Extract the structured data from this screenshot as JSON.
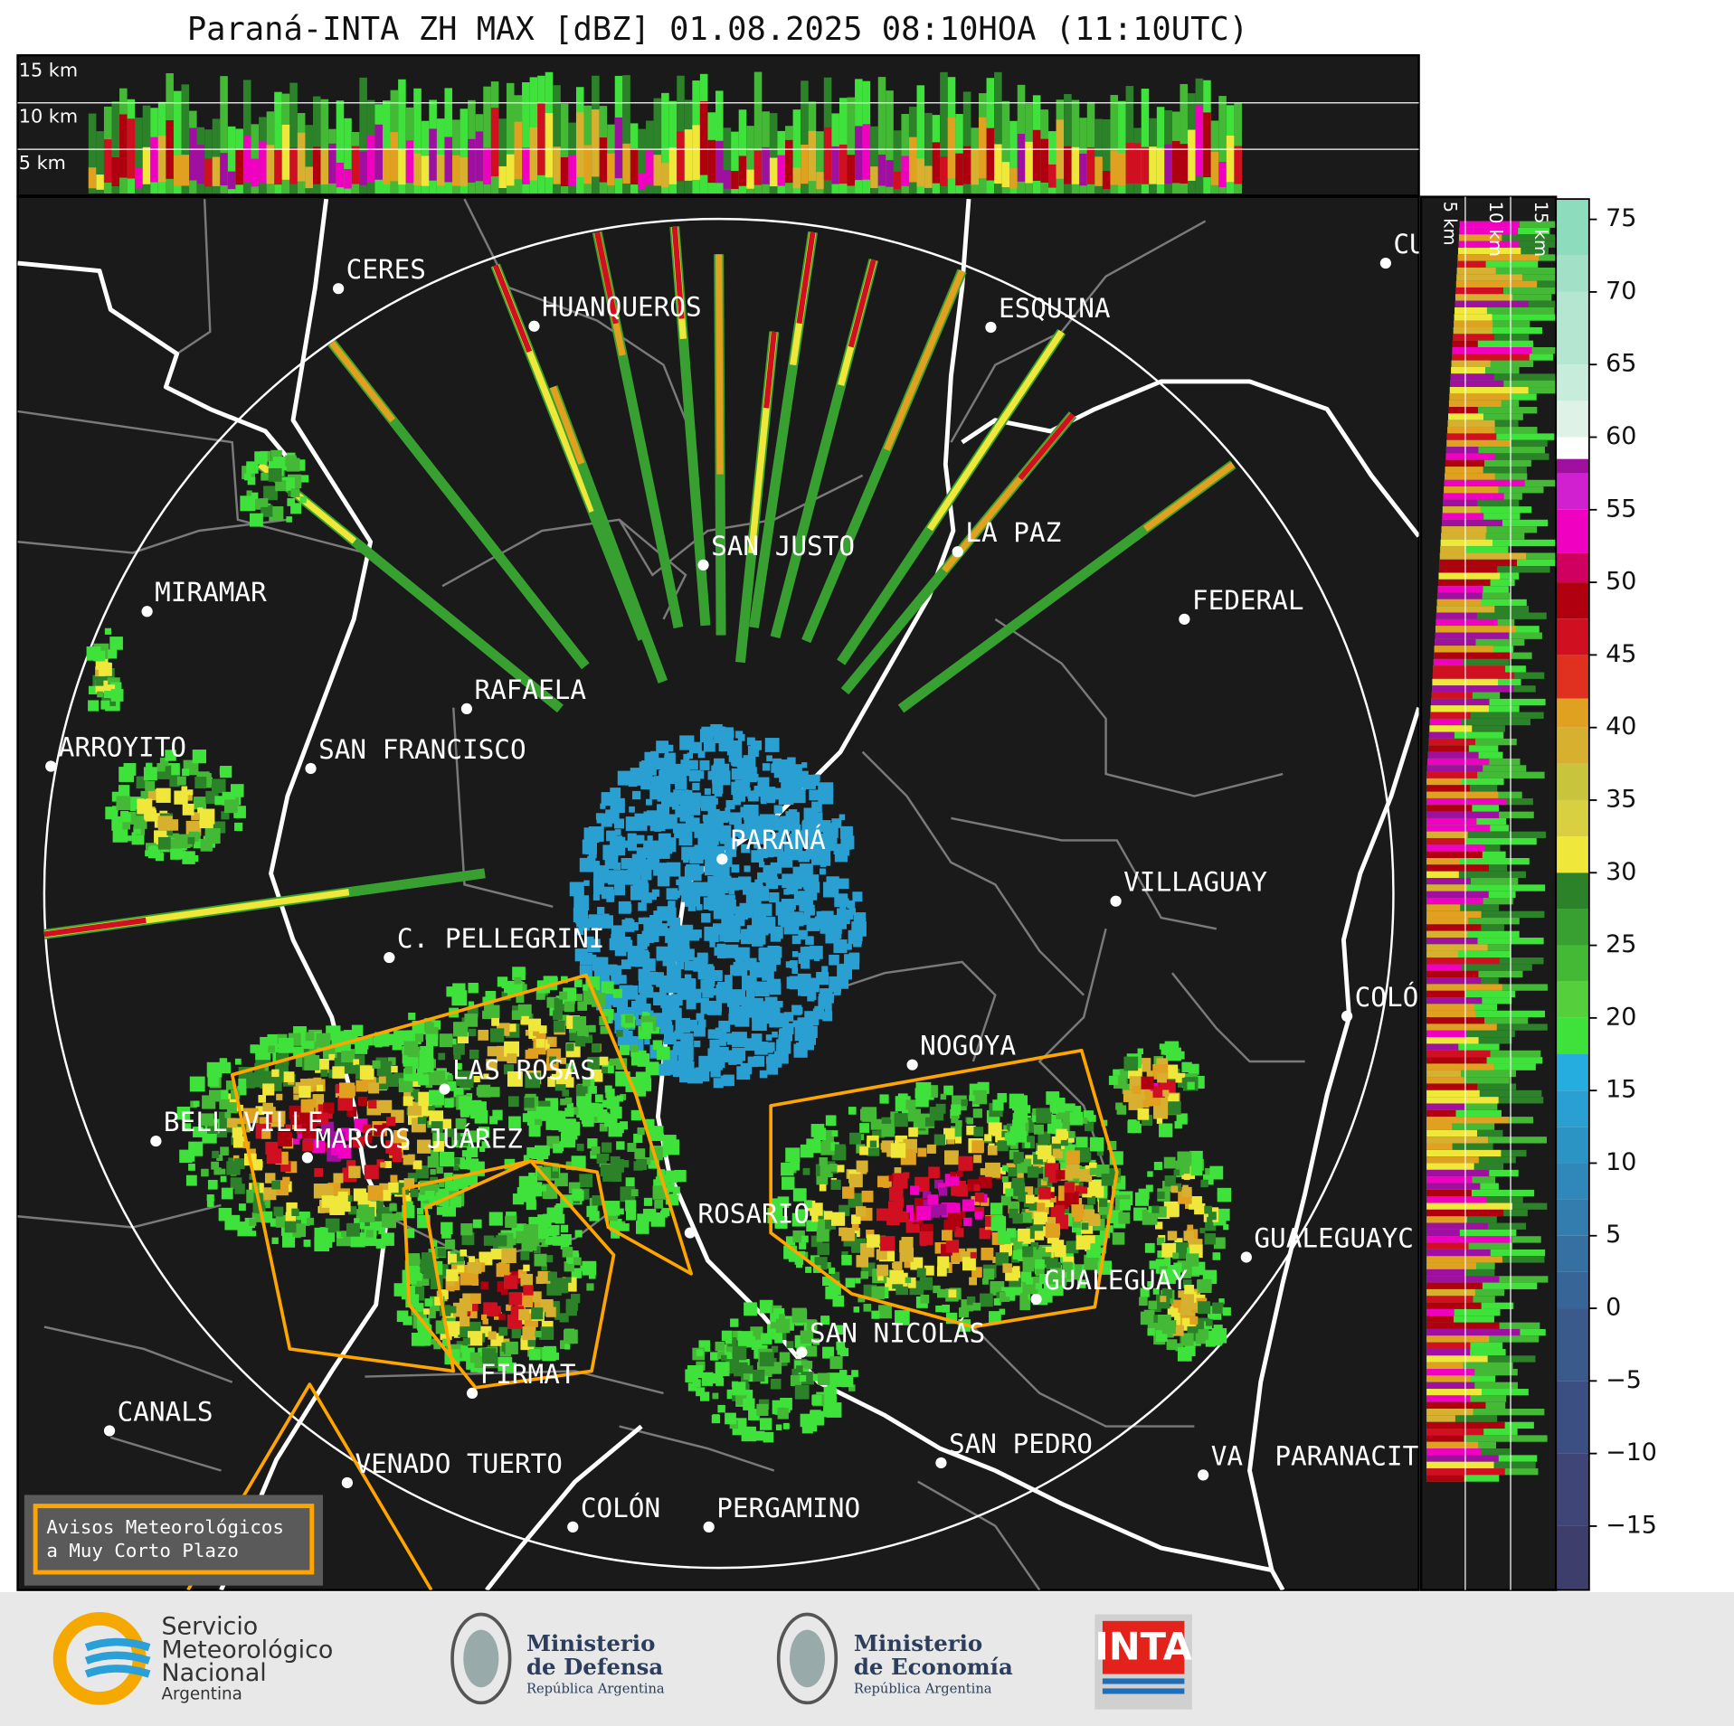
{
  "title": "Paraná-INTA ZH MAX [dBZ] 01.08.2025 08:10HOA (11:10UTC)",
  "top_section": {
    "labels": [
      "15 km",
      "10 km",
      "5 km"
    ]
  },
  "side_section": {
    "labels": [
      "5 km",
      "10 km",
      "15 km"
    ]
  },
  "cities": [
    "CERES",
    "HUANQUEROS",
    "ESQUINA",
    "CU",
    "SAN JUSTO",
    "LA PAZ",
    "MIRAMAR",
    "FEDERAL",
    "RAFAELA",
    "ARROYITO",
    "SAN FRANCISCO",
    "PARANÁ",
    "VILLAGUAY",
    "C. PELLEGRINI",
    "COLÓ",
    "NOGOYA",
    "LAS ROSAS",
    "BELL VILLE",
    "MARCOS JUÁREZ",
    "ROSARIO",
    "GUALEGUAYC",
    "GUALEGUAY",
    "SAN NICOLÁS",
    "FIRMAT",
    "CANALS",
    "SAN PEDRO",
    "VA. PARANACIT",
    "VENADO TUERTO",
    "COLÓN",
    "PERGAMINO"
  ],
  "warning_legend": [
    "Avisos Meteorológicos",
    "a Muy Corto Plazo"
  ],
  "colorbar": {
    "ylim": [
      -19.4,
      76.4
    ],
    "ticks": [
      75,
      70,
      65,
      60,
      55,
      50,
      45,
      40,
      35,
      30,
      25,
      20,
      15,
      10,
      5,
      0,
      {
        "value": -5,
        "label": "−5"
      },
      {
        "value": -10,
        "label": "−10"
      },
      {
        "value": -15,
        "label": "−15"
      }
    ],
    "bands": [
      {
        "from": -19.4,
        "color": "#3d3e6b"
      },
      {
        "from": -15,
        "color": "#3f4677"
      },
      {
        "from": -10,
        "color": "#3c4f82"
      },
      {
        "from": -5,
        "color": "#3a5a8c"
      },
      {
        "from": 0,
        "color": "#386597"
      },
      {
        "from": 2.5,
        "color": "#3670a2"
      },
      {
        "from": 5,
        "color": "#337dae"
      },
      {
        "from": 7.5,
        "color": "#3088ba"
      },
      {
        "from": 10,
        "color": "#2c93c5"
      },
      {
        "from": 12.5,
        "color": "#2aa0d2"
      },
      {
        "from": 15,
        "color": "#26addf"
      },
      {
        "from": 17.5,
        "color": "#3fe23a"
      },
      {
        "from": 20,
        "color": "#55d03c"
      },
      {
        "from": 22.5,
        "color": "#44b935"
      },
      {
        "from": 25,
        "color": "#38a030"
      },
      {
        "from": 27.5,
        "color": "#2b8228"
      },
      {
        "from": 30,
        "color": "#efe83a"
      },
      {
        "from": 32.5,
        "color": "#d8d040"
      },
      {
        "from": 35,
        "color": "#c8c43c"
      },
      {
        "from": 37.5,
        "color": "#d8b030"
      },
      {
        "from": 40,
        "color": "#e0a020"
      },
      {
        "from": 42,
        "color": "#e03020"
      },
      {
        "from": 45,
        "color": "#d01020"
      },
      {
        "from": 47.5,
        "color": "#b00010"
      },
      {
        "from": 50,
        "color": "#d00060"
      },
      {
        "from": 52,
        "color": "#f000c0"
      },
      {
        "from": 55,
        "color": "#d020d0"
      },
      {
        "from": 57.5,
        "color": "#a010a0"
      },
      {
        "from": 58.5,
        "color": "#ffffff"
      },
      {
        "from": 60,
        "color": "#def2e8"
      },
      {
        "from": 62.5,
        "color": "#c8ecdc"
      },
      {
        "from": 65,
        "color": "#b4e6d2"
      },
      {
        "from": 70,
        "color": "#a2e0c8"
      },
      {
        "from": 72.5,
        "color": "#8edcbe"
      }
    ]
  },
  "footer": {
    "smn": [
      "Servicio",
      "Meteorológico",
      "Nacional",
      "Argentina"
    ],
    "defensa": [
      "Ministerio",
      "de Defensa",
      "República Argentina"
    ],
    "economia": [
      "Ministerio",
      "de Economía",
      "República Argentina"
    ],
    "inta": "INTA"
  }
}
